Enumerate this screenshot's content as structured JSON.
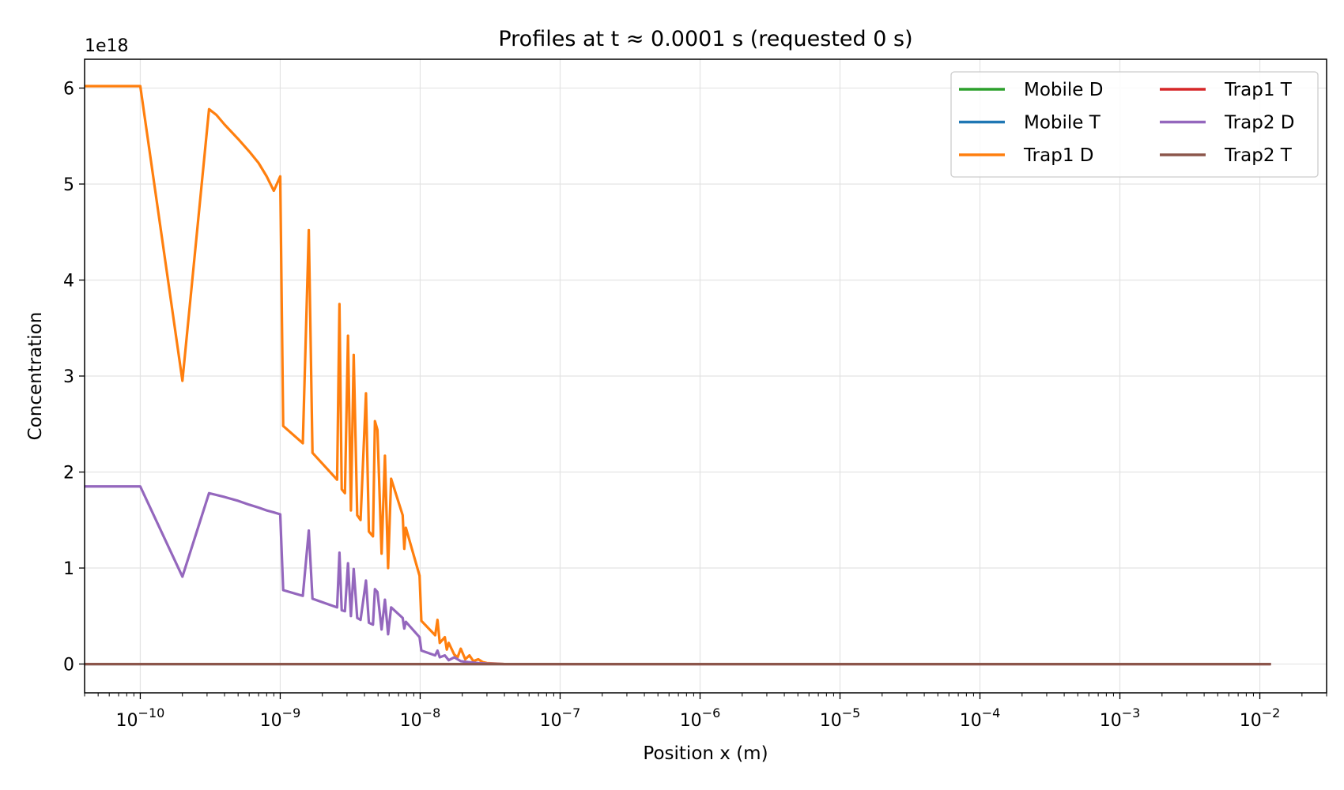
{
  "chart_data": {
    "type": "line",
    "title": "Profiles at t ≈ 0.0001 s (requested 0 s)",
    "xlabel": "Position x (m)",
    "ylabel": "Concentration",
    "y_offset_label": "1e18",
    "x_scale": "log",
    "xlim": [
      4e-11,
      0.03
    ],
    "ylim": [
      -0.3,
      6.3
    ],
    "y_scale_factor": 1e+18,
    "grid": true,
    "legend_position": "top-right",
    "legend_columns": 2,
    "x_ticks": [
      {
        "value": 1e-10,
        "base": "10",
        "exp": "−10"
      },
      {
        "value": 1e-09,
        "base": "10",
        "exp": "−9"
      },
      {
        "value": 1e-08,
        "base": "10",
        "exp": "−8"
      },
      {
        "value": 1e-07,
        "base": "10",
        "exp": "−7"
      },
      {
        "value": 1e-06,
        "base": "10",
        "exp": "−6"
      },
      {
        "value": 1e-05,
        "base": "10",
        "exp": "−5"
      },
      {
        "value": 0.0001,
        "base": "10",
        "exp": "−4"
      },
      {
        "value": 0.001,
        "base": "10",
        "exp": "−3"
      },
      {
        "value": 0.01,
        "base": "10",
        "exp": "−2"
      }
    ],
    "y_ticks": [
      {
        "value": 0,
        "label": "0"
      },
      {
        "value": 1,
        "label": "1"
      },
      {
        "value": 2,
        "label": "2"
      },
      {
        "value": 3,
        "label": "3"
      },
      {
        "value": 4,
        "label": "4"
      },
      {
        "value": 5,
        "label": "5"
      },
      {
        "value": 6,
        "label": "6"
      }
    ],
    "series": [
      {
        "name": "Mobile D",
        "color": "#2ca02c",
        "x": [
          4e-11,
          0.012
        ],
        "y": [
          0,
          0
        ]
      },
      {
        "name": "Mobile T",
        "color": "#1f77b4",
        "x": [
          4e-11,
          0.012
        ],
        "y": [
          0,
          0
        ]
      },
      {
        "name": "Trap1 D",
        "color": "#ff7f0e",
        "x": [
          4e-11,
          1e-10,
          2e-10,
          3.1e-10,
          3.5e-10,
          4e-10,
          5e-10,
          6e-10,
          7e-10,
          8e-10,
          9e-10,
          1e-09,
          1.05e-09,
          1.45e-09,
          1.6e-09,
          1.7e-09,
          2.55e-09,
          2.65e-09,
          2.75e-09,
          2.9e-09,
          3.05e-09,
          3.2e-09,
          3.35e-09,
          3.55e-09,
          3.75e-09,
          4.1e-09,
          4.3e-09,
          4.6e-09,
          4.75e-09,
          4.95e-09,
          5.3e-09,
          5.6e-09,
          5.9e-09,
          6.2e-09,
          7.5e-09,
          7.7e-09,
          7.9e-09,
          9.9e-09,
          1.02e-08,
          1.28e-08,
          1.33e-08,
          1.38e-08,
          1.5e-08,
          1.55e-08,
          1.6e-08,
          1.75e-08,
          1.85e-08,
          1.95e-08,
          2.1e-08,
          2.25e-08,
          2.4e-08,
          2.6e-08,
          2.8e-08,
          3e-08,
          3.5e-08,
          4e-08,
          5e-08,
          1e-07,
          0.012
        ],
        "y": [
          6.02,
          6.02,
          2.95,
          5.78,
          5.72,
          5.62,
          5.47,
          5.34,
          5.22,
          5.08,
          4.93,
          5.08,
          2.48,
          2.3,
          4.52,
          2.2,
          1.92,
          3.75,
          1.82,
          1.78,
          3.42,
          1.6,
          3.22,
          1.55,
          1.5,
          2.82,
          1.38,
          1.33,
          2.53,
          2.44,
          1.15,
          2.17,
          1.0,
          1.93,
          1.55,
          1.2,
          1.42,
          0.92,
          0.45,
          0.3,
          0.46,
          0.22,
          0.28,
          0.15,
          0.22,
          0.1,
          0.07,
          0.16,
          0.05,
          0.09,
          0.03,
          0.05,
          0.02,
          0.01,
          0.005,
          0.0,
          0.0,
          0.0,
          0.0
        ]
      },
      {
        "name": "Trap1 T",
        "color": "#d62728",
        "x": [
          4e-11,
          0.012
        ],
        "y": [
          0,
          0
        ]
      },
      {
        "name": "Trap2 D",
        "color": "#9467bd",
        "x": [
          4e-11,
          1e-10,
          2e-10,
          3.1e-10,
          4e-10,
          5e-10,
          6e-10,
          7e-10,
          8e-10,
          9e-10,
          1e-09,
          1.05e-09,
          1.45e-09,
          1.6e-09,
          1.7e-09,
          2.55e-09,
          2.65e-09,
          2.75e-09,
          2.9e-09,
          3.05e-09,
          3.2e-09,
          3.35e-09,
          3.55e-09,
          3.75e-09,
          4.1e-09,
          4.3e-09,
          4.6e-09,
          4.75e-09,
          4.95e-09,
          5.3e-09,
          5.6e-09,
          5.9e-09,
          6.2e-09,
          7.5e-09,
          7.7e-09,
          7.9e-09,
          9.9e-09,
          1.02e-08,
          1.28e-08,
          1.33e-08,
          1.38e-08,
          1.5e-08,
          1.6e-08,
          1.75e-08,
          1.95e-08,
          2.2e-08,
          2.6e-08,
          3e-08,
          4e-08,
          1e-07,
          0.012
        ],
        "y": [
          1.85,
          1.85,
          0.91,
          1.78,
          1.74,
          1.7,
          1.66,
          1.63,
          1.6,
          1.58,
          1.56,
          0.77,
          0.71,
          1.39,
          0.68,
          0.59,
          1.16,
          0.56,
          0.55,
          1.05,
          0.5,
          0.99,
          0.48,
          0.46,
          0.87,
          0.43,
          0.41,
          0.78,
          0.75,
          0.36,
          0.67,
          0.31,
          0.59,
          0.48,
          0.37,
          0.44,
          0.28,
          0.14,
          0.09,
          0.14,
          0.07,
          0.09,
          0.04,
          0.07,
          0.03,
          0.02,
          0.01,
          0.005,
          0.0,
          0.0,
          0.0
        ]
      },
      {
        "name": "Trap2 T",
        "color": "#8c564b",
        "x": [
          4e-11,
          0.012
        ],
        "y": [
          0,
          0
        ]
      }
    ]
  }
}
